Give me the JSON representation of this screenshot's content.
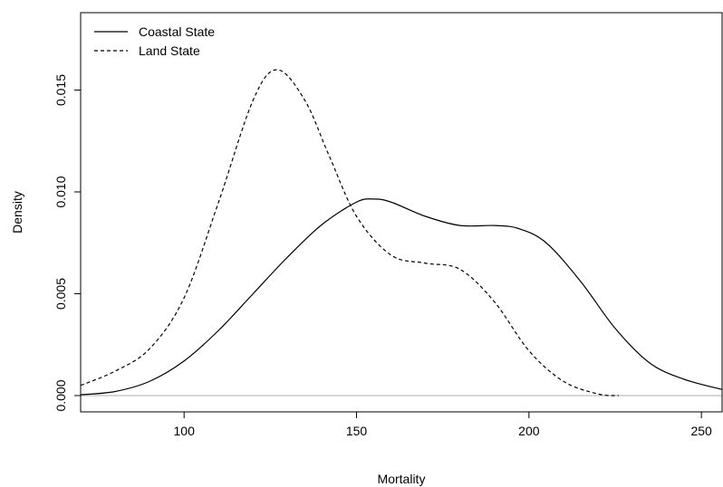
{
  "chart_data": {
    "type": "line",
    "title": "",
    "xlabel": "Mortality",
    "ylabel": "Density",
    "xlim": [
      70,
      256
    ],
    "ylim": [
      -0.0008,
      0.0188
    ],
    "x_ticks": [
      100,
      150,
      200,
      250
    ],
    "x_tick_labels": [
      "100",
      "150",
      "200",
      "250"
    ],
    "y_ticks": [
      0.0,
      0.005,
      0.01,
      0.015
    ],
    "y_tick_labels": [
      "0.000",
      "0.005",
      "0.010",
      "0.015"
    ],
    "grid": false,
    "legend_position": "top-left",
    "baseline": {
      "y": 0,
      "color": "#bebebe"
    },
    "series": [
      {
        "name": "Coastal State",
        "line_style": "solid",
        "color": "#000000",
        "x": [
          70,
          80,
          90,
          100,
          110,
          120,
          130,
          140,
          150,
          155,
          160,
          170,
          180,
          190,
          197,
          205,
          215,
          225,
          235,
          245,
          256
        ],
        "y": [
          4e-05,
          0.0002,
          0.0007,
          0.0017,
          0.0032,
          0.005,
          0.0068,
          0.0084,
          0.0095,
          0.00965,
          0.0095,
          0.0088,
          0.00835,
          0.00835,
          0.0082,
          0.0075,
          0.0056,
          0.0033,
          0.0016,
          0.0008,
          0.0003
        ]
      },
      {
        "name": "Land State",
        "line_style": "dashed",
        "color": "#000000",
        "x": [
          70,
          80,
          90,
          100,
          110,
          120,
          127,
          135,
          142,
          150,
          160,
          170,
          180,
          190,
          200,
          210,
          220,
          226
        ],
        "y": [
          0.0005,
          0.0012,
          0.0023,
          0.0048,
          0.0095,
          0.0145,
          0.016,
          0.0145,
          0.0118,
          0.0088,
          0.0069,
          0.0065,
          0.0062,
          0.0046,
          0.0022,
          0.0007,
          8e-05,
          0.0
        ]
      }
    ]
  }
}
